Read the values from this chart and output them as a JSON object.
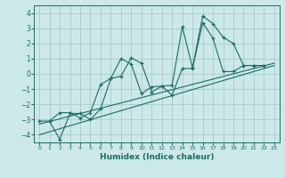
{
  "xlabel": "Humidex (Indice chaleur)",
  "bg_color": "#cce8e8",
  "grid_color": "#aacccc",
  "line_color": "#1a6e62",
  "xlim": [
    -0.5,
    23.5
  ],
  "ylim": [
    -4.5,
    4.5
  ],
  "xticks": [
    0,
    1,
    2,
    3,
    4,
    5,
    6,
    7,
    8,
    9,
    10,
    11,
    12,
    13,
    14,
    15,
    16,
    17,
    18,
    19,
    20,
    21,
    22,
    23
  ],
  "yticks": [
    -4,
    -3,
    -2,
    -1,
    0,
    1,
    2,
    3,
    4
  ],
  "line1_x": [
    0,
    1,
    2,
    3,
    4,
    5,
    6,
    7,
    8,
    9,
    10,
    11,
    12,
    13,
    14,
    15,
    16,
    17,
    18,
    19,
    20,
    21,
    22
  ],
  "line1_y": [
    -3.1,
    -3.1,
    -2.55,
    -2.55,
    -2.9,
    -2.55,
    -0.7,
    -0.3,
    1.0,
    0.65,
    -1.3,
    -0.85,
    -0.8,
    -1.4,
    0.35,
    0.35,
    3.35,
    2.35,
    0.15,
    0.15,
    0.55,
    0.55,
    0.55
  ],
  "line2_x": [
    1,
    2,
    3,
    4,
    5,
    6,
    7,
    8,
    9,
    10,
    11,
    12,
    13,
    14,
    15,
    16,
    17,
    18,
    19,
    20,
    21,
    22
  ],
  "line2_y": [
    -3.1,
    -4.3,
    -2.6,
    -2.6,
    -3.0,
    -2.3,
    -0.3,
    -0.15,
    1.05,
    0.7,
    -1.2,
    -0.8,
    -0.75,
    3.1,
    0.4,
    3.8,
    3.3,
    2.4,
    2.0,
    0.55,
    0.55,
    0.55
  ],
  "trend1_x": [
    0,
    23
  ],
  "trend1_y": [
    -3.3,
    0.7
  ],
  "trend2_x": [
    0,
    23
  ],
  "trend2_y": [
    -4.0,
    0.55
  ]
}
